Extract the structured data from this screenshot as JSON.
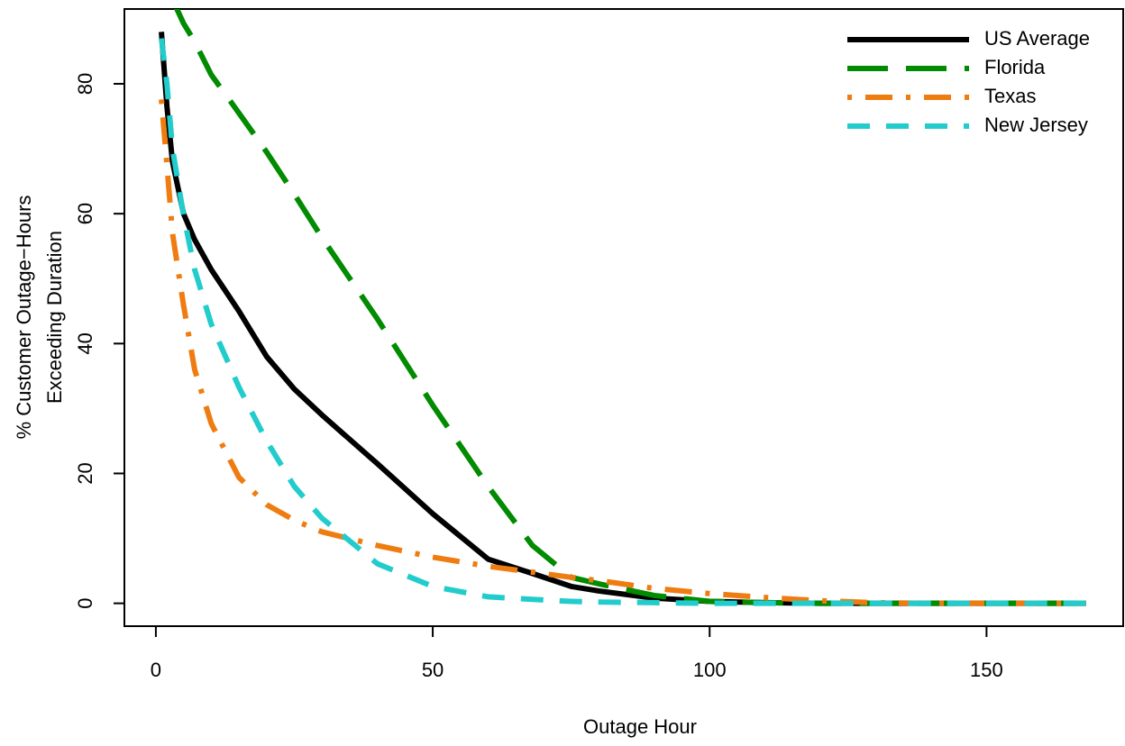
{
  "chart_data": {
    "type": "line",
    "xlabel": "Outage Hour",
    "ylabel": [
      "% Customer Outage−Hours",
      "Exceeding Duration"
    ],
    "x": [
      1,
      2,
      3,
      5,
      7,
      10,
      15,
      20,
      25,
      30,
      40,
      50,
      60,
      68,
      75,
      80,
      90,
      100,
      110,
      120,
      130,
      140,
      150,
      168
    ],
    "series": [
      {
        "name": "US Average",
        "color": "#000000",
        "dash": "solid",
        "values": [
          88,
          76.5,
          68,
          60,
          56,
          51.4,
          45,
          38,
          33,
          29,
          21.5,
          13.8,
          6.8,
          4.6,
          2.6,
          1.9,
          0.8,
          0.3,
          0.1,
          0,
          0,
          0,
          0,
          0
        ]
      },
      {
        "name": "Florida",
        "color": "#008b00",
        "dash": "longdash",
        "values": [
          null,
          null,
          93,
          89.3,
          86.5,
          81.4,
          75.5,
          69.5,
          63,
          56.3,
          43.8,
          30.5,
          18,
          8.9,
          4,
          3,
          1.2,
          0.3,
          0.1,
          0,
          0,
          0,
          0,
          0
        ]
      },
      {
        "name": "Texas",
        "color": "#ef7c10",
        "dash": "dotdash",
        "values": [
          77.6,
          67.5,
          57,
          45.9,
          36,
          27.7,
          19.4,
          15.2,
          12.8,
          11,
          8.9,
          7.1,
          5.7,
          4.8,
          4,
          3.5,
          2.3,
          1.5,
          0.9,
          0.4,
          0.1,
          0,
          0,
          0
        ]
      },
      {
        "name": "New Jersey",
        "color": "#22cccc",
        "dash": "dashed",
        "values": [
          87,
          80,
          70,
          59.8,
          51.4,
          43,
          33.3,
          25,
          18,
          13.1,
          6.1,
          2.6,
          1,
          0.6,
          0.3,
          0.2,
          0.1,
          0,
          0,
          0,
          0,
          0,
          0,
          0
        ]
      }
    ],
    "xlim": [
      -5.68,
      174.68
    ],
    "xticks": [
      0,
      50,
      100,
      150
    ],
    "ylim": [
      -3.52,
      91.52
    ],
    "yticks": [
      0,
      20,
      40,
      60,
      80
    ],
    "legend": "topright"
  }
}
